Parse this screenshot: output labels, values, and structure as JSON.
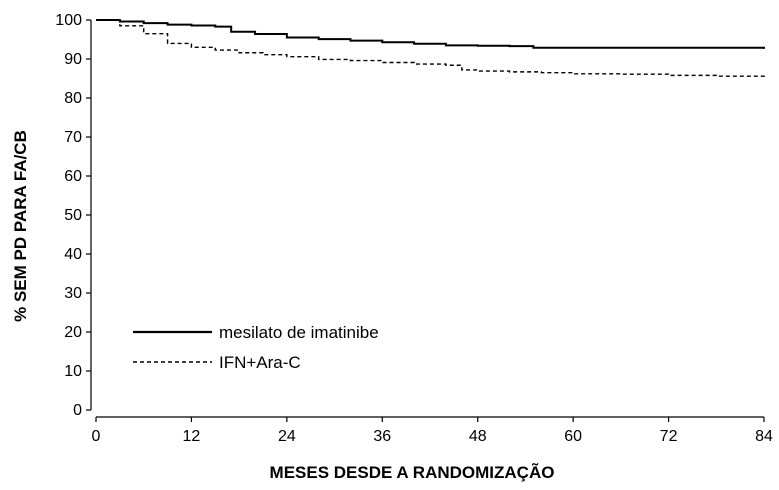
{
  "chart_data": {
    "type": "line",
    "title": "",
    "xlabel": "MESES DESDE A RANDOMIZAÇÃO",
    "ylabel": "% SEM PD PARA FA/CB",
    "xlim": [
      0,
      84
    ],
    "ylim": [
      0,
      100
    ],
    "x_ticks": [
      0,
      12,
      24,
      36,
      48,
      60,
      72,
      84
    ],
    "y_ticks": [
      0,
      10,
      20,
      30,
      40,
      50,
      60,
      70,
      80,
      90,
      100
    ],
    "grid": false,
    "legend_position": "bottom-left",
    "series": [
      {
        "name": "mesilato de imatinibe",
        "line_style": "solid",
        "color": "#000000",
        "x": [
          0,
          3,
          6,
          9,
          12,
          15,
          17,
          20,
          24,
          28,
          32,
          36,
          40,
          44,
          48,
          52,
          55,
          60,
          66,
          72,
          78,
          84
        ],
        "y": [
          100,
          99.6,
          99.2,
          98.8,
          98.6,
          98.3,
          97,
          96.4,
          95.5,
          95.1,
          94.7,
          94.3,
          93.9,
          93.5,
          93.4,
          93.3,
          92.9,
          92.9,
          92.9,
          92.9,
          92.9,
          92.6
        ]
      },
      {
        "name": "IFN+Ara-C",
        "line_style": "dashed",
        "color": "#000000",
        "x": [
          0,
          3,
          6,
          9,
          12,
          15,
          18,
          21,
          24,
          28,
          32,
          36,
          40,
          44,
          46,
          48,
          52,
          56,
          60,
          66,
          72,
          78,
          84
        ],
        "y": [
          100,
          98.5,
          96.5,
          94,
          93,
          92.3,
          91.6,
          91.1,
          90.6,
          89.9,
          89.6,
          89.1,
          88.7,
          88.4,
          87.2,
          86.9,
          86.7,
          86.5,
          86.2,
          86.1,
          85.8,
          85.6,
          85.2
        ]
      }
    ]
  }
}
